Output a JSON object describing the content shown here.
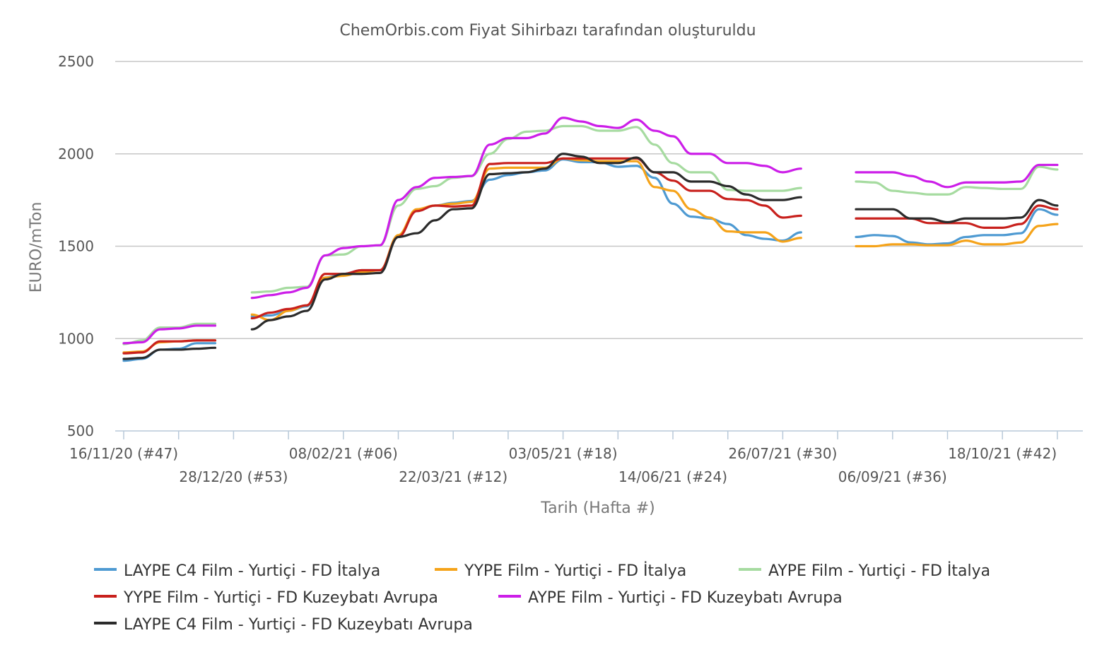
{
  "chart_data": {
    "type": "line",
    "title": "ChemOrbis.com Fiyat Sihirbazı tarafından oluşturuldu",
    "xlabel": "Tarih (Hafta #)",
    "ylabel": "EURO/mTon",
    "ylim": [
      500,
      2500
    ],
    "yticks": [
      500,
      1000,
      1500,
      2000,
      2500
    ],
    "grid": true,
    "legend_position": "bottom",
    "x_start_label": "16/11/20 (#47)",
    "x_tick_labels": [
      {
        "week": 0,
        "label": "16/11/20 (#47)"
      },
      {
        "week": 6,
        "label": "28/12/20 (#53)"
      },
      {
        "week": 12,
        "label": "08/02/21 (#06)"
      },
      {
        "week": 18,
        "label": "22/03/21 (#12)"
      },
      {
        "week": 24,
        "label": "03/05/21 (#18)"
      },
      {
        "week": 30,
        "label": "14/06/21 (#24)"
      },
      {
        "week": 36,
        "label": "26/07/21 (#30)"
      },
      {
        "week": 42,
        "label": "06/09/21 (#36)"
      },
      {
        "week": 48,
        "label": "18/10/21 (#42)"
      }
    ],
    "x_max_week": 52.8,
    "series": [
      {
        "name": "LAYPE C4 Film - Yurtiçi  - FD İtalya",
        "color": "#4e9ad2",
        "points": [
          [
            0,
            880
          ],
          [
            1,
            890
          ],
          [
            2,
            940
          ],
          [
            3,
            945
          ],
          [
            4,
            975
          ],
          [
            5,
            975
          ],
          null,
          [
            7,
            1120
          ],
          [
            8,
            1125
          ],
          [
            9,
            1150
          ],
          [
            10,
            1175
          ],
          [
            11,
            1330
          ],
          [
            12,
            1350
          ],
          [
            13,
            1370
          ],
          [
            14,
            1370
          ],
          [
            15,
            1550
          ],
          [
            16,
            1690
          ],
          [
            17,
            1720
          ],
          [
            18,
            1735
          ],
          [
            19,
            1745
          ],
          [
            20,
            1860
          ],
          [
            21,
            1885
          ],
          [
            22,
            1900
          ],
          [
            23,
            1910
          ],
          [
            24,
            1970
          ],
          [
            25,
            1955
          ],
          [
            26,
            1955
          ],
          [
            27,
            1930
          ],
          [
            28,
            1935
          ],
          [
            29,
            1870
          ],
          [
            30,
            1730
          ],
          [
            31,
            1660
          ],
          [
            32,
            1650
          ],
          [
            33,
            1620
          ],
          [
            34,
            1560
          ],
          [
            35,
            1540
          ],
          [
            36,
            1530
          ],
          [
            37,
            1575
          ],
          null,
          [
            40,
            1550
          ],
          [
            41,
            1560
          ],
          [
            42,
            1555
          ],
          [
            43,
            1520
          ],
          [
            44,
            1510
          ],
          [
            45,
            1515
          ],
          [
            46,
            1550
          ],
          [
            47,
            1560
          ],
          [
            48,
            1560
          ],
          [
            49,
            1570
          ],
          [
            50,
            1700
          ],
          [
            51,
            1670
          ]
        ]
      },
      {
        "name": "YYPE Film - Yurtiçi  - FD İtalya",
        "color": "#f5a31a",
        "points": [
          [
            0,
            925
          ],
          [
            1,
            930
          ],
          [
            2,
            980
          ],
          [
            3,
            985
          ],
          [
            4,
            990
          ],
          [
            5,
            990
          ],
          null,
          [
            7,
            1130
          ],
          [
            8,
            1100
          ],
          [
            9,
            1150
          ],
          [
            10,
            1180
          ],
          [
            11,
            1330
          ],
          [
            12,
            1340
          ],
          [
            13,
            1360
          ],
          [
            14,
            1370
          ],
          [
            15,
            1560
          ],
          [
            16,
            1700
          ],
          [
            17,
            1720
          ],
          [
            18,
            1730
          ],
          [
            19,
            1740
          ],
          [
            20,
            1920
          ],
          [
            21,
            1925
          ],
          [
            22,
            1925
          ],
          [
            23,
            1925
          ],
          [
            24,
            1975
          ],
          [
            25,
            1965
          ],
          [
            26,
            1960
          ],
          [
            27,
            1960
          ],
          [
            28,
            1960
          ],
          [
            29,
            1820
          ],
          [
            30,
            1800
          ],
          [
            31,
            1700
          ],
          [
            32,
            1655
          ],
          [
            33,
            1580
          ],
          [
            34,
            1575
          ],
          [
            35,
            1575
          ],
          [
            36,
            1525
          ],
          [
            37,
            1545
          ],
          null,
          [
            40,
            1500
          ],
          [
            41,
            1500
          ],
          [
            42,
            1510
          ],
          [
            43,
            1510
          ],
          [
            44,
            1505
          ],
          [
            45,
            1505
          ],
          [
            46,
            1530
          ],
          [
            47,
            1510
          ],
          [
            48,
            1510
          ],
          [
            49,
            1520
          ],
          [
            50,
            1610
          ],
          [
            51,
            1620
          ]
        ]
      },
      {
        "name": "AYPE Film - Yurtiçi  - FD İtalya",
        "color": "#a6dba0",
        "points": [
          [
            0,
            970
          ],
          [
            1,
            990
          ],
          [
            2,
            1060
          ],
          [
            3,
            1060
          ],
          [
            4,
            1080
          ],
          [
            5,
            1080
          ],
          null,
          [
            7,
            1250
          ],
          [
            8,
            1255
          ],
          [
            9,
            1275
          ],
          [
            10,
            1280
          ],
          [
            11,
            1450
          ],
          [
            12,
            1455
          ],
          [
            13,
            1500
          ],
          [
            14,
            1505
          ],
          [
            15,
            1720
          ],
          [
            16,
            1810
          ],
          [
            17,
            1825
          ],
          [
            18,
            1870
          ],
          [
            19,
            1880
          ],
          [
            20,
            2000
          ],
          [
            21,
            2080
          ],
          [
            22,
            2120
          ],
          [
            23,
            2125
          ],
          [
            24,
            2150
          ],
          [
            25,
            2150
          ],
          [
            26,
            2125
          ],
          [
            27,
            2125
          ],
          [
            28,
            2145
          ],
          [
            29,
            2050
          ],
          [
            30,
            1950
          ],
          [
            31,
            1900
          ],
          [
            32,
            1900
          ],
          [
            33,
            1805
          ],
          [
            34,
            1800
          ],
          [
            35,
            1800
          ],
          [
            36,
            1800
          ],
          [
            37,
            1815
          ],
          null,
          [
            40,
            1850
          ],
          [
            41,
            1845
          ],
          [
            42,
            1800
          ],
          [
            43,
            1790
          ],
          [
            44,
            1780
          ],
          [
            45,
            1780
          ],
          [
            46,
            1820
          ],
          [
            47,
            1815
          ],
          [
            48,
            1810
          ],
          [
            49,
            1810
          ],
          [
            50,
            1930
          ],
          [
            51,
            1915
          ]
        ]
      },
      {
        "name": "YYPE Film - Yurtiçi  - FD Kuzeybatı Avrupa",
        "color": "#c8201c",
        "points": [
          [
            0,
            920
          ],
          [
            1,
            925
          ],
          [
            2,
            985
          ],
          [
            3,
            985
          ],
          [
            4,
            990
          ],
          [
            5,
            990
          ],
          null,
          [
            7,
            1110
          ],
          [
            8,
            1140
          ],
          [
            9,
            1160
          ],
          [
            10,
            1180
          ],
          [
            11,
            1350
          ],
          [
            12,
            1350
          ],
          [
            13,
            1370
          ],
          [
            14,
            1370
          ],
          [
            15,
            1550
          ],
          [
            16,
            1690
          ],
          [
            17,
            1720
          ],
          [
            18,
            1715
          ],
          [
            19,
            1720
          ],
          [
            20,
            1945
          ],
          [
            21,
            1950
          ],
          [
            22,
            1950
          ],
          [
            23,
            1950
          ],
          [
            24,
            1975
          ],
          [
            25,
            1975
          ],
          [
            26,
            1975
          ],
          [
            27,
            1975
          ],
          [
            28,
            1975
          ],
          [
            29,
            1900
          ],
          [
            30,
            1855
          ],
          [
            31,
            1800
          ],
          [
            32,
            1800
          ],
          [
            33,
            1755
          ],
          [
            34,
            1750
          ],
          [
            35,
            1720
          ],
          [
            36,
            1655
          ],
          [
            37,
            1665
          ],
          null,
          [
            40,
            1650
          ],
          [
            41,
            1650
          ],
          [
            42,
            1650
          ],
          [
            43,
            1650
          ],
          [
            44,
            1625
          ],
          [
            45,
            1625
          ],
          [
            46,
            1625
          ],
          [
            47,
            1600
          ],
          [
            48,
            1600
          ],
          [
            49,
            1620
          ],
          [
            50,
            1720
          ],
          [
            51,
            1700
          ]
        ]
      },
      {
        "name": "AYPE Film - Yurtiçi  - FD Kuzeybatı Avrupa",
        "color": "#cc1ee8",
        "points": [
          [
            0,
            975
          ],
          [
            1,
            980
          ],
          [
            2,
            1050
          ],
          [
            3,
            1055
          ],
          [
            4,
            1070
          ],
          [
            5,
            1070
          ],
          null,
          [
            7,
            1220
          ],
          [
            8,
            1235
          ],
          [
            9,
            1250
          ],
          [
            10,
            1275
          ],
          [
            11,
            1450
          ],
          [
            12,
            1490
          ],
          [
            13,
            1500
          ],
          [
            14,
            1505
          ],
          [
            15,
            1750
          ],
          [
            16,
            1820
          ],
          [
            17,
            1870
          ],
          [
            18,
            1875
          ],
          [
            19,
            1880
          ],
          [
            20,
            2050
          ],
          [
            21,
            2085
          ],
          [
            22,
            2085
          ],
          [
            23,
            2110
          ],
          [
            24,
            2195
          ],
          [
            25,
            2175
          ],
          [
            26,
            2150
          ],
          [
            27,
            2140
          ],
          [
            28,
            2185
          ],
          [
            29,
            2125
          ],
          [
            30,
            2095
          ],
          [
            31,
            2000
          ],
          [
            32,
            2000
          ],
          [
            33,
            1950
          ],
          [
            34,
            1950
          ],
          [
            35,
            1935
          ],
          [
            36,
            1900
          ],
          [
            37,
            1920
          ],
          null,
          [
            40,
            1900
          ],
          [
            41,
            1900
          ],
          [
            42,
            1900
          ],
          [
            43,
            1880
          ],
          [
            44,
            1850
          ],
          [
            45,
            1820
          ],
          [
            46,
            1845
          ],
          [
            47,
            1845
          ],
          [
            48,
            1845
          ],
          [
            49,
            1850
          ],
          [
            50,
            1940
          ],
          [
            51,
            1940
          ]
        ]
      },
      {
        "name": "LAYPE C4 Film - Yurtiçi  - FD Kuzeybatı Avrupa",
        "color": "#2b2b2b",
        "points": [
          [
            0,
            890
          ],
          [
            1,
            895
          ],
          [
            2,
            940
          ],
          [
            3,
            940
          ],
          [
            4,
            945
          ],
          [
            5,
            950
          ],
          null,
          [
            7,
            1050
          ],
          [
            8,
            1100
          ],
          [
            9,
            1120
          ],
          [
            10,
            1150
          ],
          [
            11,
            1320
          ],
          [
            12,
            1350
          ],
          [
            13,
            1350
          ],
          [
            14,
            1355
          ],
          [
            15,
            1550
          ],
          [
            16,
            1570
          ],
          [
            17,
            1640
          ],
          [
            18,
            1700
          ],
          [
            19,
            1705
          ],
          [
            20,
            1890
          ],
          [
            21,
            1895
          ],
          [
            22,
            1900
          ],
          [
            23,
            1920
          ],
          [
            24,
            2000
          ],
          [
            25,
            1985
          ],
          [
            26,
            1950
          ],
          [
            27,
            1950
          ],
          [
            28,
            1980
          ],
          [
            29,
            1900
          ],
          [
            30,
            1900
          ],
          [
            31,
            1850
          ],
          [
            32,
            1850
          ],
          [
            33,
            1825
          ],
          [
            34,
            1780
          ],
          [
            35,
            1750
          ],
          [
            36,
            1750
          ],
          [
            37,
            1765
          ],
          null,
          [
            40,
            1700
          ],
          [
            41,
            1700
          ],
          [
            42,
            1700
          ],
          [
            43,
            1650
          ],
          [
            44,
            1650
          ],
          [
            45,
            1630
          ],
          [
            46,
            1650
          ],
          [
            47,
            1650
          ],
          [
            48,
            1650
          ],
          [
            49,
            1655
          ],
          [
            50,
            1750
          ],
          [
            51,
            1720
          ]
        ]
      }
    ]
  }
}
